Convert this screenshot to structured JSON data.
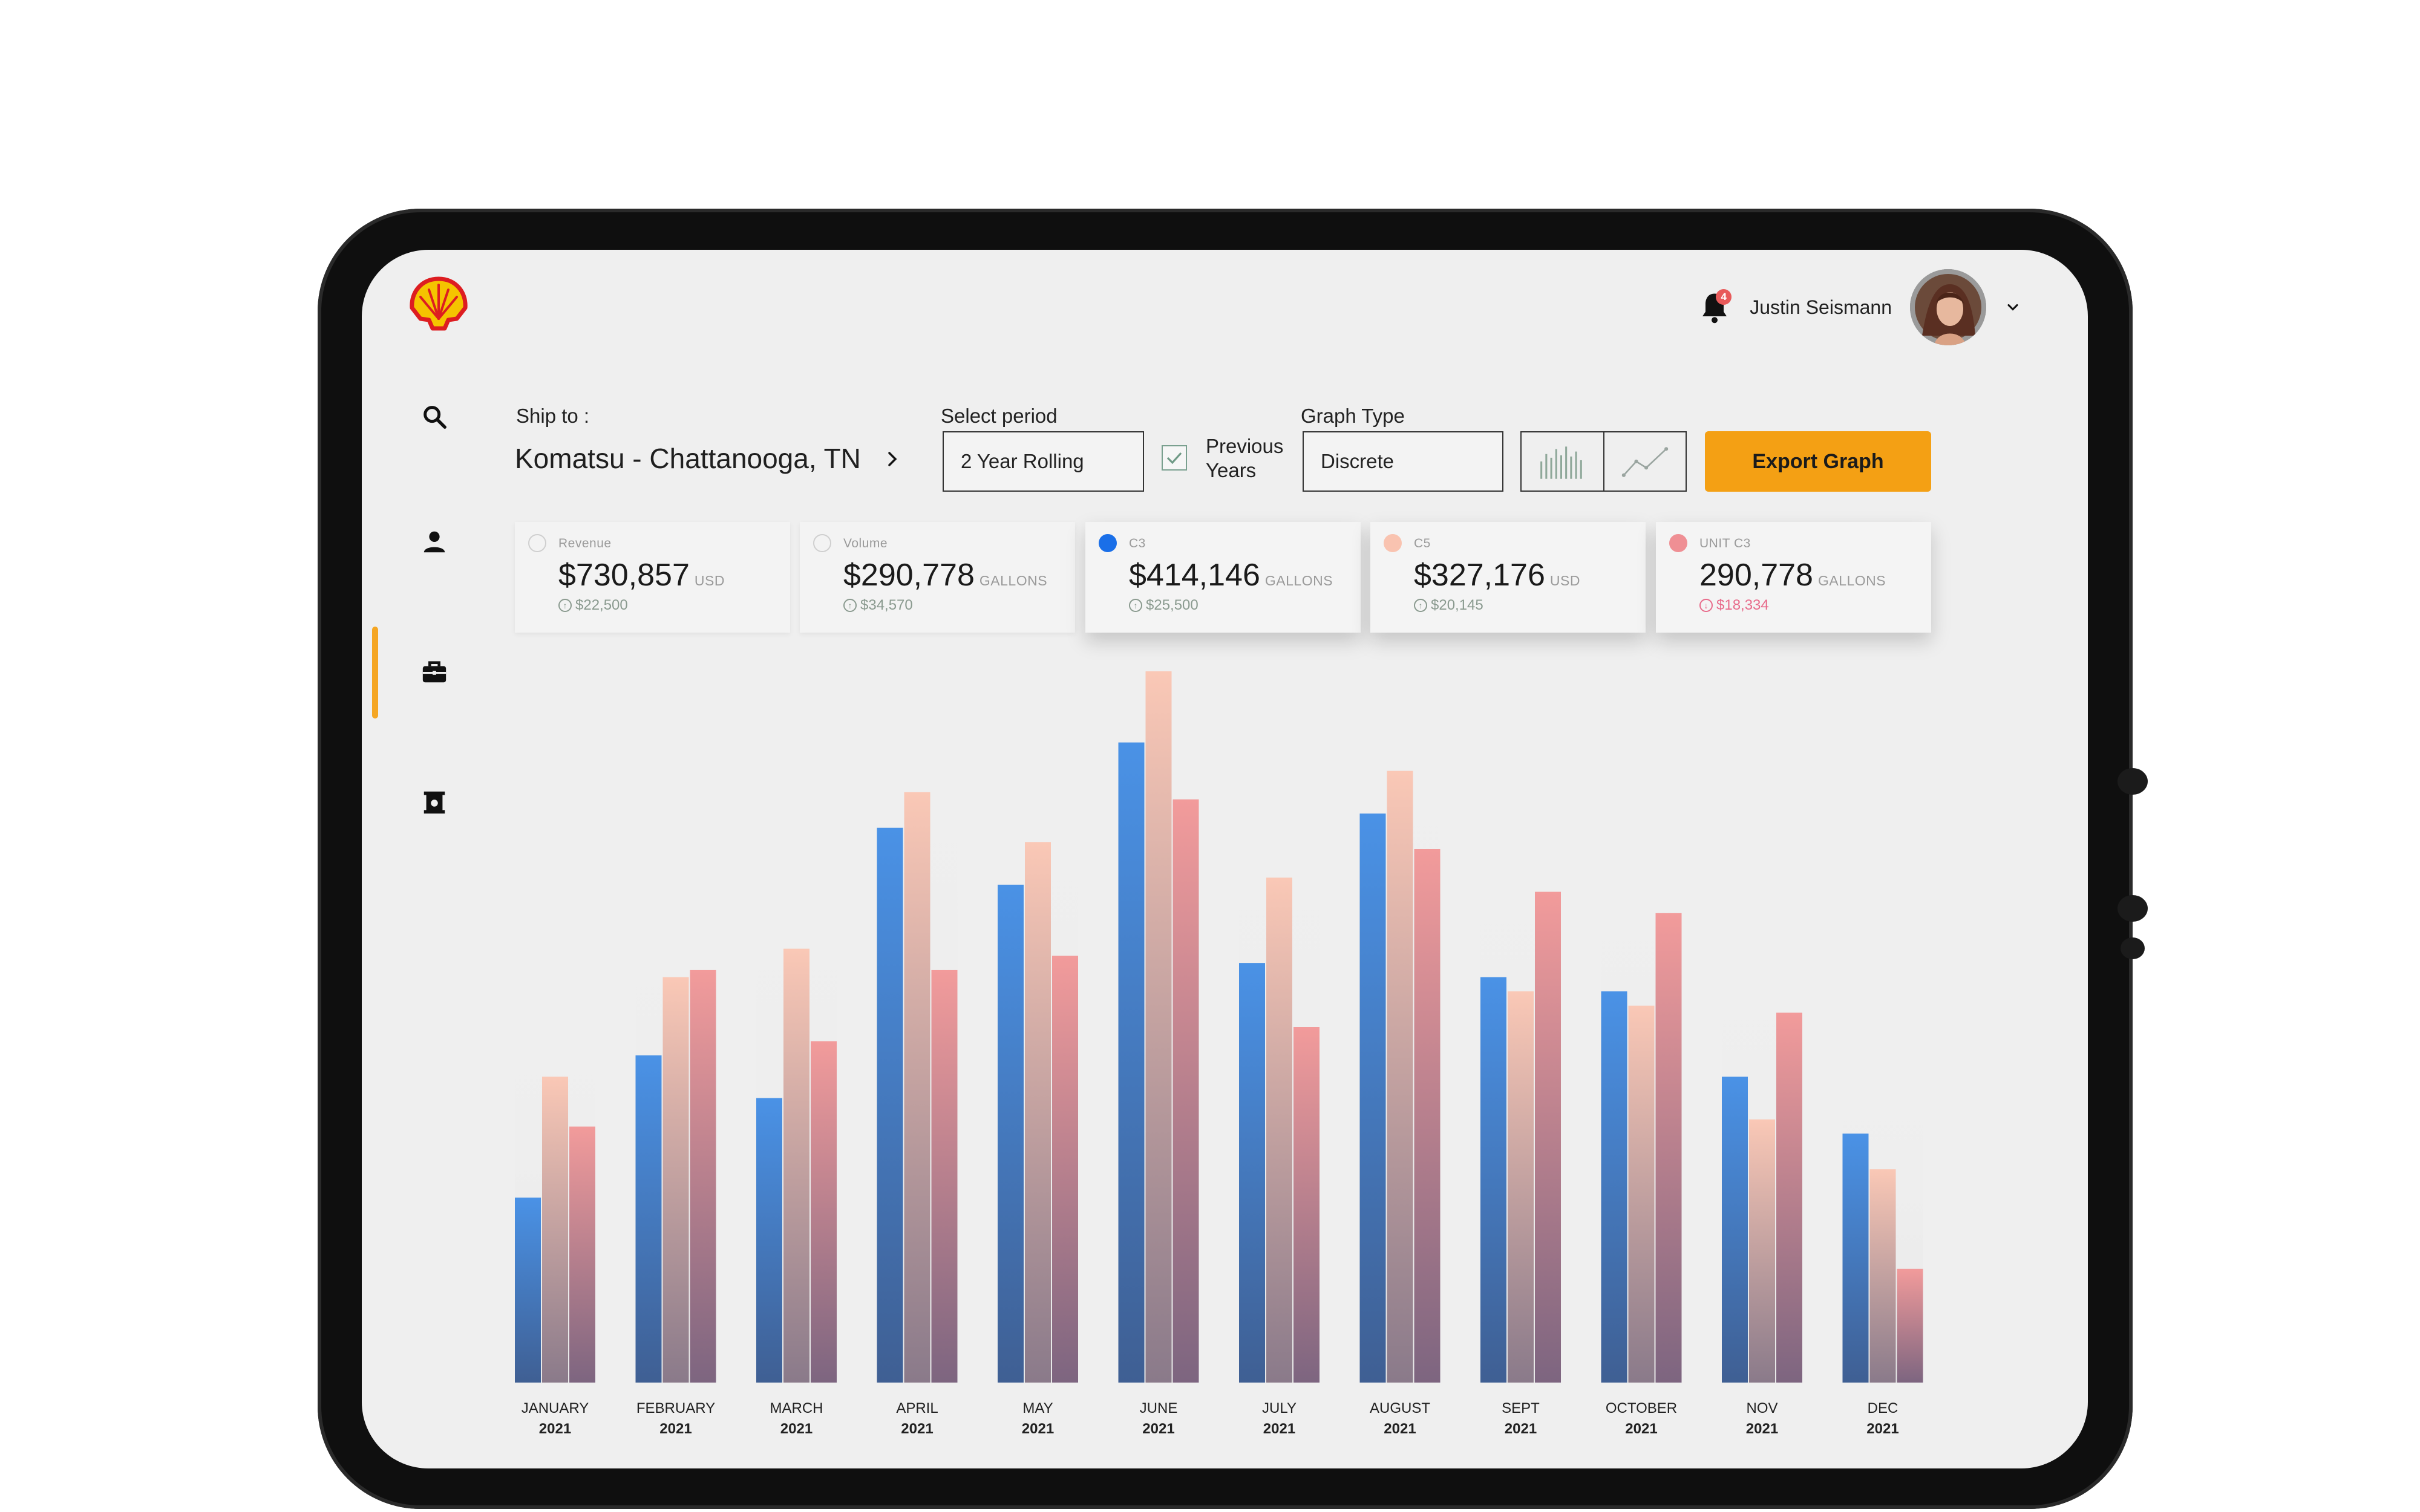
{
  "header": {
    "user_name": "Justin Seismann",
    "notification_count": "4"
  },
  "filters": {
    "ship_to_label": "Ship to :",
    "ship_to_value": "Komatsu - Chattanooga, TN",
    "period_label": "Select period",
    "period_value": "2 Year Rolling",
    "previous_years_label_line1": "Previous",
    "previous_years_label_line2": "Years",
    "previous_years_checked": true,
    "graph_type_label": "Graph Type",
    "graph_type_value": "Discrete",
    "export_label": "Export Graph"
  },
  "cards": [
    {
      "label": "Revenue",
      "value": "$730,857",
      "unit": "USD",
      "delta": "$22,500",
      "selected": false
    },
    {
      "label": "Volume",
      "value": "$290,778",
      "unit": "GALLONS",
      "delta": "$34,570",
      "selected": false
    },
    {
      "label": "C3",
      "value": "$414,146",
      "unit": "GALLONS",
      "delta": "$25,500",
      "selected": true
    },
    {
      "label": "C5",
      "value": "$327,176",
      "unit": "USD",
      "delta": "$20,145",
      "selected": true
    },
    {
      "label": "UNIT C3",
      "value": "290,778",
      "unit": "GALLONS",
      "delta": "$18,334",
      "selected": true
    }
  ],
  "colors": {
    "accent": "#f4a014",
    "c3": "#4a90e2",
    "c5": "#f9c3b0",
    "unit_c3": "#f09a9a",
    "positive_delta": "#8a9a8f",
    "negative_delta": "#e86a8a"
  },
  "icons": [
    "search-icon",
    "user-icon",
    "briefcase-icon",
    "fuel-icon",
    "bell-icon",
    "chevron-down-icon",
    "chevron-right-icon",
    "bar-chart-icon",
    "line-chart-icon",
    "check-icon"
  ],
  "chart_data": {
    "type": "bar",
    "categories": [
      "JANUARY",
      "FEBRUARY",
      "MARCH",
      "APRIL",
      "MAY",
      "JUNE",
      "JULY",
      "AUGUST",
      "SEPT",
      "OCTOBER",
      "NOV",
      "DEC"
    ],
    "year_labels": [
      "2021",
      "2021",
      "2021",
      "2021",
      "2021",
      "2021",
      "2021",
      "2021",
      "2021",
      "2021",
      "2021",
      "2021"
    ],
    "series": [
      {
        "name": "C3",
        "values": [
          26,
          46,
          40,
          78,
          70,
          90,
          59,
          80,
          57,
          55,
          43,
          35
        ]
      },
      {
        "name": "C5",
        "values": [
          43,
          57,
          61,
          83,
          76,
          100,
          71,
          86,
          55,
          53,
          37,
          30
        ]
      },
      {
        "name": "UNIT C3",
        "values": [
          36,
          58,
          48,
          58,
          60,
          82,
          50,
          75,
          69,
          66,
          52,
          16
        ]
      }
    ],
    "ylim": [
      0,
      100
    ],
    "grid": false
  }
}
